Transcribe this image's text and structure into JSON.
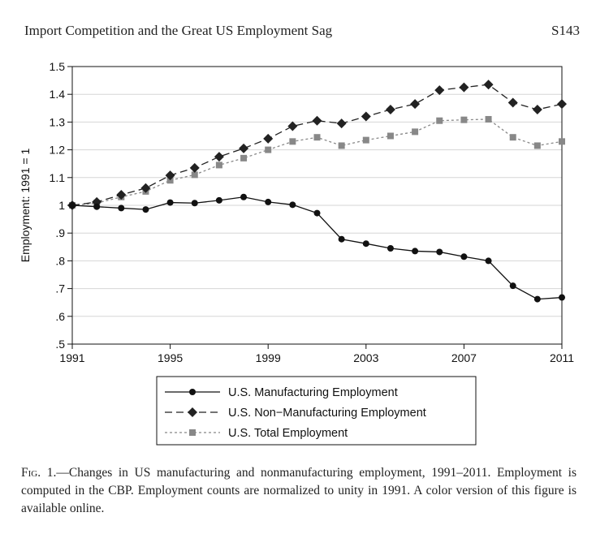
{
  "header": {
    "title": "Import Competition and the Great US Employment Sag",
    "page": "S143"
  },
  "caption": {
    "label": "Fig. 1.",
    "text": "—Changes in US manufacturing and nonmanufacturing employment, 1991–2011. Employment is computed in the CBP. Employment counts are normalized to unity in 1991. A color version of this figure is available online."
  },
  "chart_data": {
    "type": "line",
    "title": "",
    "xlabel": "",
    "ylabel": "Employment: 1991 = 1",
    "xlim": [
      1991,
      2011
    ],
    "ylim": [
      0.5,
      1.5
    ],
    "x_ticks": [
      1991,
      1995,
      1999,
      2003,
      2007,
      2011
    ],
    "x_tick_labels": [
      "1991",
      "1995",
      "1999",
      "2003",
      "2007",
      "2011"
    ],
    "y_ticks": [
      0.5,
      0.6,
      0.7,
      0.8,
      0.9,
      1.0,
      1.1,
      1.2,
      1.3,
      1.4,
      1.5
    ],
    "y_tick_labels": [
      ".5",
      ".6",
      ".7",
      ".8",
      ".9",
      "1",
      "1.1",
      "1.2",
      "1.3",
      "1.4",
      "1.5"
    ],
    "grid": true,
    "legend_position": "bottom",
    "x": [
      1991,
      1992,
      1993,
      1994,
      1995,
      1996,
      1997,
      1998,
      1999,
      2000,
      2001,
      2002,
      2003,
      2004,
      2005,
      2006,
      2007,
      2008,
      2009,
      2010,
      2011
    ],
    "series": [
      {
        "name": "U.S. Manufacturing Employment",
        "marker": "circle",
        "line_style": "solid",
        "color": "#111111",
        "values": [
          1.0,
          0.995,
          0.99,
          0.985,
          1.01,
          1.008,
          1.018,
          1.03,
          1.012,
          1.002,
          0.972,
          0.878,
          0.862,
          0.845,
          0.835,
          0.832,
          0.815,
          0.8,
          0.71,
          0.662,
          0.668
        ]
      },
      {
        "name": "U.S. Non−Manufacturing Employment",
        "marker": "diamond",
        "line_style": "dashed",
        "color": "#222222",
        "values": [
          1.0,
          1.012,
          1.038,
          1.062,
          1.108,
          1.135,
          1.175,
          1.205,
          1.24,
          1.285,
          1.305,
          1.295,
          1.32,
          1.345,
          1.365,
          1.415,
          1.425,
          1.435,
          1.37,
          1.345,
          1.365
        ]
      },
      {
        "name": "U.S. Total Employment",
        "marker": "square",
        "line_style": "dotted",
        "color": "#888888",
        "values": [
          1.0,
          1.008,
          1.03,
          1.05,
          1.09,
          1.11,
          1.145,
          1.17,
          1.2,
          1.23,
          1.245,
          1.215,
          1.235,
          1.25,
          1.265,
          1.305,
          1.308,
          1.31,
          1.245,
          1.215,
          1.23
        ]
      }
    ]
  }
}
